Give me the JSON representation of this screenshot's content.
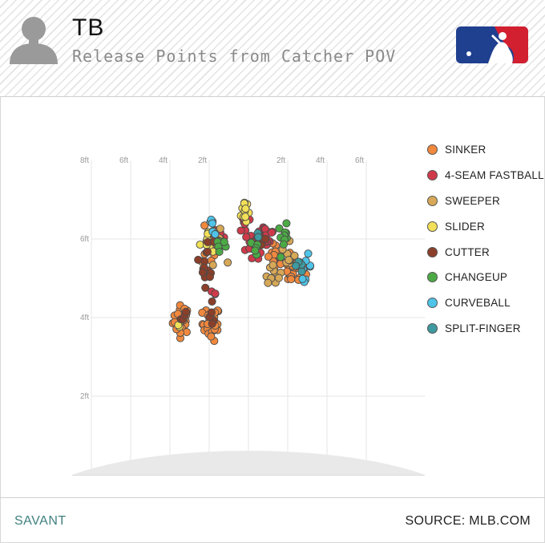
{
  "header": {
    "team": "TB",
    "subtitle": "Release Points from Catcher POV"
  },
  "footer": {
    "left_text": "SAVANT",
    "right_text": "SOURCE: MLB.COM"
  },
  "icons": [
    "player-silhouette-icon",
    "mlb-logo-icon"
  ],
  "colors": {
    "grid": "#e6e6e6",
    "mound": "#e9e9e9",
    "brand_blue": "#1f3f8f",
    "brand_red": "#d22030"
  },
  "chart_data": {
    "type": "scatter",
    "title": "Release Points from Catcher POV",
    "x_tick_labels": [
      "8ft",
      "6ft",
      "4ft",
      "2ft",
      "2ft",
      "4ft",
      "6ft"
    ],
    "y_tick_labels": [
      "6ft",
      "4ft",
      "2ft"
    ],
    "xlim": [
      -8,
      8
    ],
    "ylim": [
      0,
      8
    ],
    "grid": true,
    "legend_position": "right",
    "series": [
      {
        "name": "SINKER",
        "color": "#f0883e",
        "clusters": [
          {
            "x": -3.4,
            "y": 3.95,
            "sx": 0.22,
            "sy": 0.18,
            "n": 34
          },
          {
            "x": -1.9,
            "y": 3.85,
            "sx": 0.22,
            "sy": 0.22,
            "n": 30
          },
          {
            "x": 2.3,
            "y": 5.2,
            "sx": 0.3,
            "sy": 0.18,
            "n": 20
          },
          {
            "x": 1.4,
            "y": 5.5,
            "sx": 0.22,
            "sy": 0.2,
            "n": 14
          },
          {
            "x": -2.0,
            "y": 5.8,
            "sx": 0.2,
            "sy": 0.25,
            "n": 10
          }
        ]
      },
      {
        "name": "4-SEAM FASTBALL",
        "color": "#cf3a4a",
        "clusters": [
          {
            "x": 0.3,
            "y": 6.0,
            "sx": 0.3,
            "sy": 0.2,
            "n": 24
          },
          {
            "x": 0.9,
            "y": 6.1,
            "sx": 0.25,
            "sy": 0.15,
            "n": 14
          },
          {
            "x": -1.5,
            "y": 6.0,
            "sx": 0.22,
            "sy": 0.22,
            "n": 14
          },
          {
            "x": 0.4,
            "y": 5.7,
            "sx": 0.2,
            "sy": 0.15,
            "n": 8
          },
          {
            "x": -0.2,
            "y": 6.5,
            "sx": 0.15,
            "sy": 0.12,
            "n": 6
          },
          {
            "x": -1.7,
            "y": 4.55,
            "sx": 0.05,
            "sy": 0.1,
            "n": 3
          }
        ]
      },
      {
        "name": "SWEEPER",
        "color": "#d6a857",
        "clusters": [
          {
            "x": 1.2,
            "y": 5.2,
            "sx": 0.2,
            "sy": 0.15,
            "n": 10
          },
          {
            "x": -1.6,
            "y": 5.8,
            "sx": 0.2,
            "sy": 0.2,
            "n": 10
          },
          {
            "x": 2.1,
            "y": 5.5,
            "sx": 0.2,
            "sy": 0.2,
            "n": 8
          }
        ]
      },
      {
        "name": "SLIDER",
        "color": "#f2e058",
        "clusters": [
          {
            "x": -0.2,
            "y": 6.75,
            "sx": 0.12,
            "sy": 0.2,
            "n": 12
          },
          {
            "x": -2.1,
            "y": 6.0,
            "sx": 0.18,
            "sy": 0.2,
            "n": 10
          },
          {
            "x": -3.5,
            "y": 3.75,
            "sx": 0.1,
            "sy": 0.08,
            "n": 3
          }
        ]
      },
      {
        "name": "CUTTER",
        "color": "#8a3f2a",
        "clusters": [
          {
            "x": -2.1,
            "y": 5.4,
            "sx": 0.16,
            "sy": 0.3,
            "n": 16
          },
          {
            "x": -3.35,
            "y": 4.1,
            "sx": 0.1,
            "sy": 0.15,
            "n": 4
          },
          {
            "x": -1.8,
            "y": 4.1,
            "sx": 0.12,
            "sy": 0.18,
            "n": 5
          },
          {
            "x": 0.6,
            "y": 5.9,
            "sx": 0.15,
            "sy": 0.12,
            "n": 6
          }
        ]
      },
      {
        "name": "CHANGEUP",
        "color": "#4caa45",
        "clusters": [
          {
            "x": 1.8,
            "y": 6.05,
            "sx": 0.15,
            "sy": 0.15,
            "n": 10
          },
          {
            "x": -1.4,
            "y": 5.85,
            "sx": 0.18,
            "sy": 0.18,
            "n": 7
          },
          {
            "x": 0.4,
            "y": 5.75,
            "sx": 0.15,
            "sy": 0.12,
            "n": 5
          }
        ]
      },
      {
        "name": "CURVEBALL",
        "color": "#4fc3e8",
        "clusters": [
          {
            "x": 2.9,
            "y": 5.3,
            "sx": 0.15,
            "sy": 0.15,
            "n": 9
          },
          {
            "x": -1.8,
            "y": 6.3,
            "sx": 0.15,
            "sy": 0.1,
            "n": 6
          }
        ]
      },
      {
        "name": "SPLIT-FINGER",
        "color": "#3e9aa0",
        "clusters": [
          {
            "x": 2.6,
            "y": 5.35,
            "sx": 0.12,
            "sy": 0.12,
            "n": 5
          },
          {
            "x": 0.45,
            "y": 6.05,
            "sx": 0.1,
            "sy": 0.08,
            "n": 3
          }
        ]
      }
    ]
  }
}
